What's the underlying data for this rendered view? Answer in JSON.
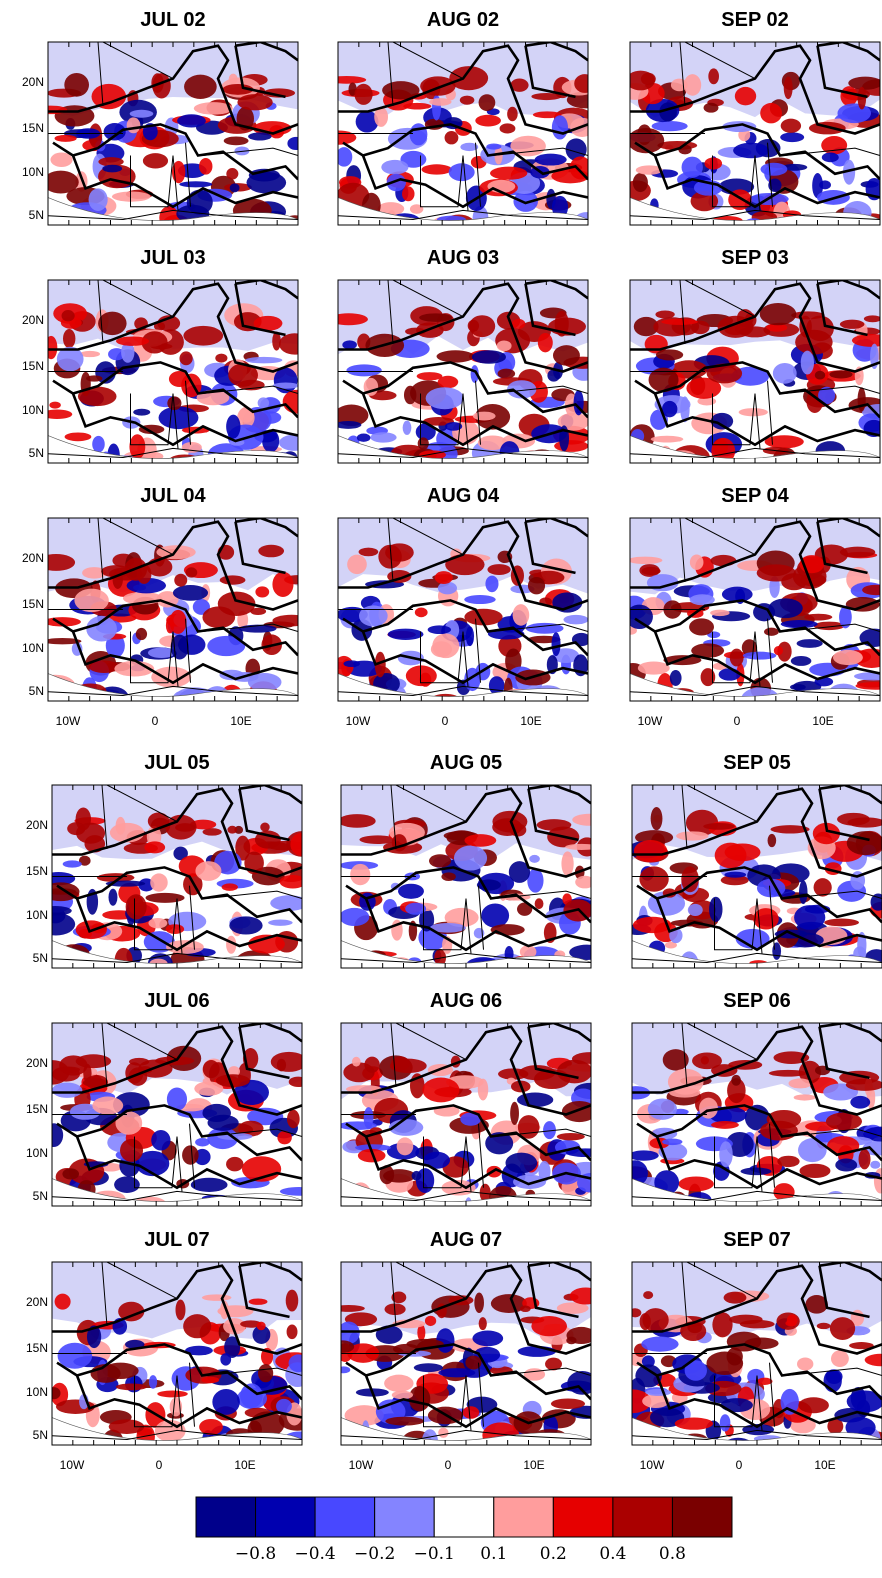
{
  "panels": [
    {
      "title": "JUL 02"
    },
    {
      "title": "AUG 02"
    },
    {
      "title": "SEP 02"
    },
    {
      "title": "JUL 03"
    },
    {
      "title": "AUG 03"
    },
    {
      "title": "SEP 03"
    },
    {
      "title": "JUL 04"
    },
    {
      "title": "AUG 04"
    },
    {
      "title": "SEP 04"
    },
    {
      "title": "JUL 05"
    },
    {
      "title": "AUG 05"
    },
    {
      "title": "SEP 05"
    },
    {
      "title": "JUL 06"
    },
    {
      "title": "AUG 06"
    },
    {
      "title": "SEP 06"
    },
    {
      "title": "JUL 07"
    },
    {
      "title": "AUG 07"
    },
    {
      "title": "SEP 07"
    }
  ],
  "y_axis_labels": [
    "20N",
    "15N",
    "10N",
    "5N"
  ],
  "x_axis_labels": [
    "10W",
    "0",
    "10E"
  ],
  "colorbar": {
    "colors": [
      "#00008b",
      "#0000b0",
      "#4848ff",
      "#8484ff",
      "#ffffff",
      "#ff9d9d",
      "#e60000",
      "#aa0000",
      "#7a0000"
    ],
    "labels": [
      "−0.8",
      "−0.4",
      "−0.2",
      "−0.1",
      "0.1",
      "0.2",
      "0.4",
      "0.8"
    ]
  }
}
